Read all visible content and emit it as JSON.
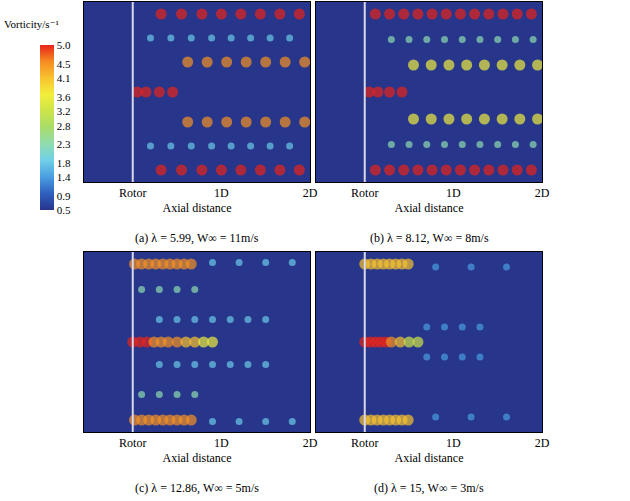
{
  "colorbar": {
    "title": "Vorticity/s⁻¹",
    "range": [
      0.5,
      5.0
    ],
    "ticks": [
      0.5,
      0.9,
      1.4,
      1.8,
      2.3,
      2.8,
      3.2,
      3.6,
      4.1,
      4.5,
      {
        "value": 5,
        "label": "5.0"
      }
    ]
  },
  "chart_data": [
    {
      "type": "scatter",
      "title": "(a) λ = 5.99, W∞ = 11m/s",
      "x_label": "Axial distance",
      "xlim": [
        -0.55,
        2
      ],
      "xticks": [
        {
          "value": 0,
          "label": "Rotor"
        },
        {
          "value": 1,
          "label": "1D"
        },
        {
          "value": 2,
          "label": "2D"
        }
      ],
      "ylim": [
        -0.6,
        0.6
      ],
      "tick_labels": "x",
      "points": [
        {
          "x": [
            0.32,
            0.55,
            0.78,
            1.0,
            1.22,
            1.44,
            1.66,
            1.88
          ],
          "y": [
            0.52,
            0.52,
            0.52,
            0.52,
            0.52,
            0.52,
            0.52,
            0.52
          ],
          "values": [
            5,
            5,
            5,
            5,
            5,
            5,
            5,
            5
          ]
        },
        {
          "x": [
            0.32,
            0.55,
            0.78,
            1.0,
            1.22,
            1.44,
            1.66,
            1.88
          ],
          "y": [
            -0.52,
            -0.52,
            -0.52,
            -0.52,
            -0.52,
            -0.52,
            -0.52,
            -0.52
          ],
          "values": [
            5,
            5,
            5,
            5,
            5,
            5,
            5,
            5
          ]
        },
        {
          "x": [
            0.62,
            0.84,
            1.06,
            1.28,
            1.5,
            1.72,
            1.94
          ],
          "y": [
            0.2,
            0.2,
            0.2,
            0.2,
            0.2,
            0.2,
            0.2
          ],
          "values": [
            4.5,
            4.5,
            4.5,
            4.5,
            4.5,
            4.5,
            4.5
          ]
        },
        {
          "x": [
            0.62,
            0.84,
            1.06,
            1.28,
            1.5,
            1.72,
            1.94
          ],
          "y": [
            -0.2,
            -0.2,
            -0.2,
            -0.2,
            -0.2,
            -0.2,
            -0.2
          ],
          "values": [
            4.5,
            4.5,
            4.5,
            4.5,
            4.5,
            4.5,
            4.5
          ]
        },
        {
          "x": [
            0.2,
            0.43,
            0.66,
            0.89,
            1.11,
            1.33,
            1.55,
            1.77
          ],
          "y": [
            0.36,
            0.36,
            0.36,
            0.36,
            0.36,
            0.36,
            0.36,
            0.36
          ],
          "values": [
            1.8,
            1.8,
            1.8,
            1.8,
            1.8,
            1.8,
            1.8,
            1.8
          ]
        },
        {
          "x": [
            0.2,
            0.43,
            0.66,
            0.89,
            1.11,
            1.33,
            1.55,
            1.77
          ],
          "y": [
            -0.36,
            -0.36,
            -0.36,
            -0.36,
            -0.36,
            -0.36,
            -0.36,
            -0.36
          ],
          "values": [
            1.8,
            1.8,
            1.8,
            1.8,
            1.8,
            1.8,
            1.8,
            1.8
          ]
        },
        {
          "x": [
            0.05,
            0.15,
            0.3,
            0.45
          ],
          "y": [
            0,
            0,
            0,
            0
          ],
          "values": [
            5,
            5,
            5,
            5
          ]
        }
      ]
    },
    {
      "type": "scatter",
      "title": "(b) λ = 8.12, W∞ = 8m/s",
      "x_label": "Axial distance",
      "xlim": [
        -0.55,
        2
      ],
      "xticks": [
        {
          "value": 0,
          "label": "Rotor"
        },
        {
          "value": 1,
          "label": "1D"
        },
        {
          "value": 2,
          "label": "2D"
        }
      ],
      "ylim": [
        -0.6,
        0.6
      ],
      "tick_labels": "x",
      "points": [
        {
          "x": [
            0.12,
            0.28,
            0.44,
            0.6,
            0.76,
            0.92,
            1.08,
            1.24,
            1.4,
            1.56,
            1.72,
            1.88
          ],
          "y": [
            0.52,
            0.52,
            0.52,
            0.52,
            0.52,
            0.52,
            0.52,
            0.52,
            0.52,
            0.52,
            0.52,
            0.52
          ],
          "values": [
            5,
            5,
            5,
            5,
            5,
            5,
            5,
            5,
            5,
            5,
            5,
            5
          ]
        },
        {
          "x": [
            0.12,
            0.28,
            0.44,
            0.6,
            0.76,
            0.92,
            1.08,
            1.24,
            1.4,
            1.56,
            1.72,
            1.88
          ],
          "y": [
            -0.52,
            -0.52,
            -0.52,
            -0.52,
            -0.52,
            -0.52,
            -0.52,
            -0.52,
            -0.52,
            -0.52,
            -0.52,
            -0.52
          ],
          "values": [
            5,
            5,
            5,
            5,
            5,
            5,
            5,
            5,
            5,
            5,
            5,
            5
          ]
        },
        {
          "x": [
            0.3,
            0.5,
            0.7,
            0.9,
            1.1,
            1.3,
            1.5,
            1.7,
            1.9
          ],
          "y": [
            0.35,
            0.35,
            0.35,
            0.35,
            0.35,
            0.35,
            0.35,
            0.35,
            0.35
          ],
          "values": [
            2.3,
            2.3,
            2.3,
            2.3,
            2.3,
            2.3,
            2.3,
            2.3,
            2.3
          ]
        },
        {
          "x": [
            0.3,
            0.5,
            0.7,
            0.9,
            1.1,
            1.3,
            1.5,
            1.7,
            1.9
          ],
          "y": [
            -0.35,
            -0.35,
            -0.35,
            -0.35,
            -0.35,
            -0.35,
            -0.35,
            -0.35,
            -0.35
          ],
          "values": [
            2.3,
            2.3,
            2.3,
            2.3,
            2.3,
            2.3,
            2.3,
            2.3,
            2.3
          ]
        },
        {
          "x": [
            0.55,
            0.75,
            0.95,
            1.15,
            1.35,
            1.55,
            1.75,
            1.95
          ],
          "y": [
            0.18,
            0.18,
            0.18,
            0.18,
            0.18,
            0.18,
            0.18,
            0.18
          ],
          "values": [
            3.6,
            3.6,
            3.6,
            3.6,
            3.6,
            3.6,
            3.6,
            3.6
          ]
        },
        {
          "x": [
            0.55,
            0.75,
            0.95,
            1.15,
            1.35,
            1.55,
            1.75,
            1.95
          ],
          "y": [
            -0.18,
            -0.18,
            -0.18,
            -0.18,
            -0.18,
            -0.18,
            -0.18,
            -0.18
          ],
          "values": [
            3.6,
            3.6,
            3.6,
            3.6,
            3.6,
            3.6,
            3.6,
            3.6
          ]
        },
        {
          "x": [
            0.05,
            0.15,
            0.28,
            0.42
          ],
          "y": [
            0,
            0,
            0,
            0
          ],
          "values": [
            5,
            5,
            5,
            5
          ]
        }
      ]
    },
    {
      "type": "scatter",
      "title": "(c) λ = 12.86, W∞ = 5m/s",
      "x_label": "Axial distance",
      "xlim": [
        -0.55,
        2
      ],
      "xticks": [
        {
          "value": 0,
          "label": "Rotor"
        },
        {
          "value": 1,
          "label": "1D"
        },
        {
          "value": 2,
          "label": "2D"
        }
      ],
      "ylim": [
        -0.6,
        0.6
      ],
      "tick_labels": "x",
      "points": [
        {
          "x": [
            0.9,
            1.2,
            1.5,
            1.8
          ],
          "y": [
            0.53,
            0.53,
            0.53,
            0.53
          ],
          "values": [
            1.8,
            1.8,
            1.8,
            1.8
          ]
        },
        {
          "x": [
            0.9,
            1.2,
            1.5,
            1.8
          ],
          "y": [
            -0.53,
            -0.53,
            -0.53,
            -0.53
          ],
          "values": [
            1.8,
            1.8,
            1.8,
            1.8
          ]
        },
        {
          "x": [
            0.3,
            0.5,
            0.7,
            0.9,
            1.1,
            1.3,
            1.5
          ],
          "y": [
            0.15,
            0.15,
            0.15,
            0.15,
            0.15,
            0.15,
            0.15
          ],
          "values": [
            1.8,
            1.8,
            1.8,
            1.8,
            1.8,
            1.8,
            1.8
          ]
        },
        {
          "x": [
            0.3,
            0.5,
            0.7,
            0.9,
            1.1,
            1.3,
            1.5
          ],
          "y": [
            -0.15,
            -0.15,
            -0.15,
            -0.15,
            -0.15,
            -0.15,
            -0.15
          ],
          "values": [
            1.8,
            1.8,
            1.8,
            1.8,
            1.8,
            1.8,
            1.8
          ]
        },
        {
          "x": [
            0.1,
            0.3,
            0.5,
            0.7
          ],
          "y": [
            0.35,
            0.35,
            0.35,
            0.35
          ],
          "values": [
            2.3,
            2.3,
            2.3,
            2.3
          ]
        },
        {
          "x": [
            0.1,
            0.3,
            0.5,
            0.7
          ],
          "y": [
            -0.35,
            -0.35,
            -0.35,
            -0.35
          ],
          "values": [
            2.3,
            2.3,
            2.3,
            2.3
          ]
        },
        {
          "x": [
            0.02,
            0.1,
            0.18,
            0.26,
            0.34,
            0.42,
            0.5,
            0.58,
            0.66
          ],
          "y": [
            0.52,
            0.52,
            0.52,
            0.52,
            0.52,
            0.52,
            0.52,
            0.52,
            0.52
          ],
          "values": [
            4.5,
            4.5,
            4.5,
            4.5,
            4.5,
            4.5,
            4.5,
            4.5,
            4.5
          ]
        },
        {
          "x": [
            0.02,
            0.1,
            0.18,
            0.26,
            0.34,
            0.42,
            0.5,
            0.58,
            0.66
          ],
          "y": [
            -0.52,
            -0.52,
            -0.52,
            -0.52,
            -0.52,
            -0.52,
            -0.52,
            -0.52,
            -0.52
          ],
          "values": [
            4.5,
            4.5,
            4.5,
            4.5,
            4.5,
            4.5,
            4.5,
            4.5,
            4.5
          ]
        },
        {
          "x": [
            0,
            0.08,
            0.16,
            0.24,
            0.32,
            0.4,
            0.5,
            0.6,
            0.7,
            0.8,
            0.9
          ],
          "y": [
            0,
            0,
            0,
            0,
            0,
            0,
            0,
            0,
            0,
            0,
            0
          ],
          "values": [
            5,
            5,
            5,
            4.5,
            4.5,
            4.5,
            4.5,
            4.1,
            4.1,
            3.6,
            3.6
          ]
        }
      ]
    },
    {
      "type": "scatter",
      "title": "(d) λ = 15, W∞ = 3m/s",
      "x_label": "Axial distance",
      "xlim": [
        -0.55,
        2
      ],
      "xticks": [
        {
          "value": 0,
          "label": "Rotor"
        },
        {
          "value": 1,
          "label": "1D"
        },
        {
          "value": 2,
          "label": "2D"
        }
      ],
      "ylim": [
        -0.6,
        0.6
      ],
      "tick_labels": "x",
      "points": [
        {
          "x": [
            0.8,
            1.2,
            1.6
          ],
          "y": [
            0.5,
            0.5,
            0.5
          ],
          "values": [
            1.4,
            1.4,
            1.4
          ]
        },
        {
          "x": [
            0.8,
            1.2,
            1.6
          ],
          "y": [
            -0.5,
            -0.5,
            -0.5
          ],
          "values": [
            1.4,
            1.4,
            1.4
          ]
        },
        {
          "x": [
            0.7,
            0.9,
            1.1,
            1.3
          ],
          "y": [
            0.1,
            0.1,
            0.1,
            0.1
          ],
          "values": [
            1.4,
            1.4,
            1.4,
            1.4
          ]
        },
        {
          "x": [
            0.7,
            0.9,
            1.1,
            1.3
          ],
          "y": [
            -0.1,
            -0.1,
            -0.1,
            -0.1
          ],
          "values": [
            1.4,
            1.4,
            1.4,
            1.4
          ]
        },
        {
          "x": [
            0,
            0.07,
            0.14,
            0.21,
            0.28,
            0.35,
            0.42,
            0.49
          ],
          "y": [
            0.52,
            0.52,
            0.52,
            0.52,
            0.52,
            0.52,
            0.52,
            0.52
          ],
          "values": [
            4.1,
            4.1,
            4.1,
            4.1,
            4.1,
            4.1,
            4.1,
            4.1
          ]
        },
        {
          "x": [
            0,
            0.07,
            0.14,
            0.21,
            0.28,
            0.35,
            0.42,
            0.49
          ],
          "y": [
            -0.52,
            -0.52,
            -0.52,
            -0.52,
            -0.52,
            -0.52,
            -0.52,
            -0.52
          ],
          "values": [
            4.1,
            4.1,
            4.1,
            4.1,
            4.1,
            4.1,
            4.1,
            4.1
          ]
        },
        {
          "x": [
            0,
            0.06,
            0.12,
            0.18,
            0.24,
            0.3,
            0.4,
            0.5,
            0.6
          ],
          "y": [
            0,
            0,
            0,
            0,
            0,
            0,
            0,
            0,
            0
          ],
          "values": [
            5,
            5,
            5,
            5,
            5,
            4.5,
            4.1,
            3.2,
            3.2
          ]
        }
      ]
    }
  ]
}
